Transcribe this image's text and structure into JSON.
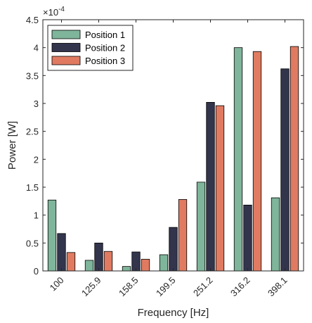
{
  "chart_data": {
    "type": "bar",
    "title": "",
    "xlabel": "Frequency [Hz]",
    "ylabel": "Power [W]",
    "y_multiplier": {
      "base": "×10",
      "exponent": "-4"
    },
    "categories": [
      "100",
      "125.9",
      "158.5",
      "199.5",
      "251.2",
      "316.2",
      "398.1"
    ],
    "ylim": [
      0,
      4.5
    ],
    "yticks": [
      "0",
      "0.5",
      "1",
      "1.5",
      "2",
      "2.5",
      "3",
      "3.5",
      "4",
      "4.5"
    ],
    "grid": false,
    "legend_position": "top-left",
    "series": [
      {
        "name": "Position 1",
        "color": "#7fb59b",
        "values": [
          1.27,
          0.19,
          0.08,
          0.29,
          1.59,
          4.0,
          1.31
        ]
      },
      {
        "name": "Position 2",
        "color": "#33354d",
        "values": [
          0.67,
          0.5,
          0.34,
          0.78,
          3.02,
          1.18,
          3.62
        ]
      },
      {
        "name": "Position 3",
        "color": "#e07b62",
        "values": [
          0.33,
          0.35,
          0.21,
          1.28,
          2.96,
          3.93,
          4.02
        ]
      }
    ]
  }
}
